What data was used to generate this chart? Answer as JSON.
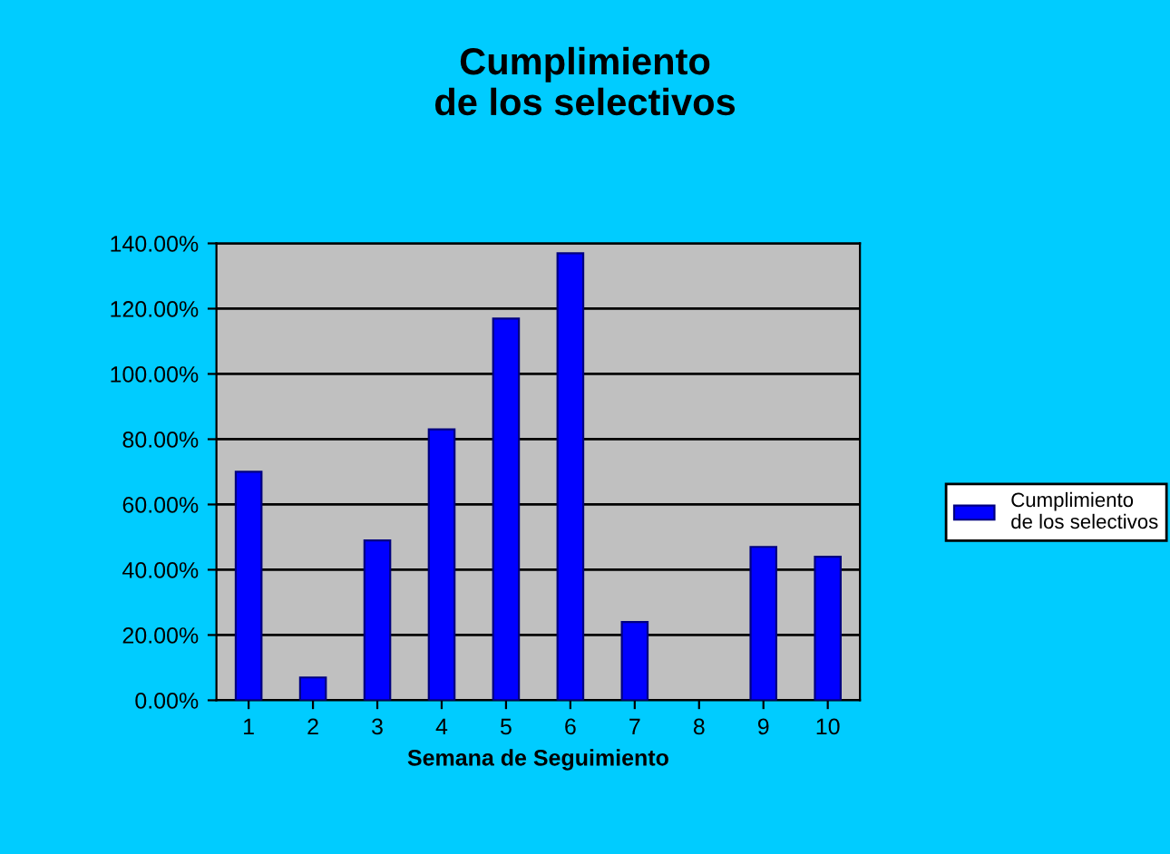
{
  "chart_data": {
    "type": "bar",
    "title": "Cumplimiento\nde los selectivos",
    "xlabel": "Semana de Seguimiento",
    "categories": [
      "1",
      "2",
      "3",
      "4",
      "5",
      "6",
      "7",
      "8",
      "9",
      "10"
    ],
    "series": [
      {
        "name": "Cumplimiento\nde los selectivos",
        "color": "#0000ff",
        "values": [
          70,
          7,
          49,
          83,
          117,
          137,
          24,
          null,
          47,
          44
        ]
      }
    ],
    "ylim": [
      0,
      140
    ],
    "yticks": [
      {
        "value": 0,
        "label": "0.00%"
      },
      {
        "value": 20,
        "label": "20.00%"
      },
      {
        "value": 40,
        "label": "40.00%"
      },
      {
        "value": 60,
        "label": "60.00%"
      },
      {
        "value": 80,
        "label": "80.00%"
      },
      {
        "value": 100,
        "label": "100.00%"
      },
      {
        "value": 120,
        "label": "120.00%"
      },
      {
        "value": 140,
        "label": "140.00%"
      }
    ],
    "grid": "y",
    "legend": "right"
  }
}
